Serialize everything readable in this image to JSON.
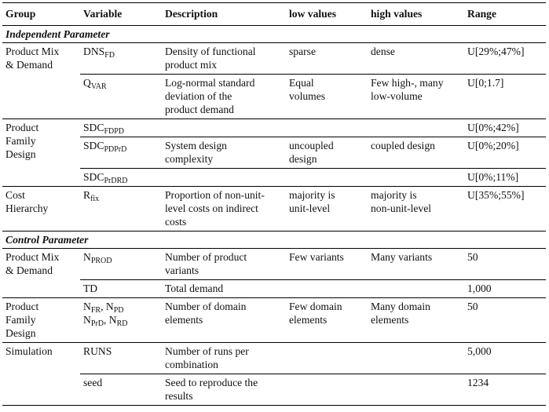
{
  "headers": {
    "group": "Group",
    "variable": "Variable",
    "description": "Description",
    "low": "low values",
    "high": "high values",
    "range": "Range"
  },
  "sections": {
    "independent": "Independent Parameter",
    "control": "Control Parameter"
  },
  "groups": {
    "pmd1": [
      "Product Mix",
      "& Demand"
    ],
    "pfd1": [
      "Product",
      "Family",
      "Design"
    ],
    "cost": [
      "Cost",
      "Hierarchy"
    ],
    "pmd2": [
      "Product Mix",
      "& Demand"
    ],
    "pfd2": [
      "Product",
      "Family",
      "Design"
    ],
    "sim": [
      "Simulation"
    ]
  },
  "rows": {
    "dns": {
      "var": "DNS",
      "sub": "FD",
      "desc": [
        "Density of functional",
        "product mix"
      ],
      "low": [
        "sparse"
      ],
      "high": [
        "dense"
      ],
      "range": "U[29%;47%]"
    },
    "qvar": {
      "var": "Q",
      "sub": "VAR",
      "desc": [
        "Log-normal standard",
        "deviation of the",
        "product demand"
      ],
      "low": [
        "Equal",
        "volumes"
      ],
      "high": [
        "Few high-, many",
        "low-volume"
      ],
      "range": "U[0;1.7]"
    },
    "sdc_fdpd": {
      "var": "SDC",
      "sub": "FDPD",
      "range": "U[0%;42%]"
    },
    "sdc_pdprd": {
      "var": "SDC",
      "sub": "PDPrD",
      "desc": [
        "System design",
        "complexity"
      ],
      "low": [
        "uncoupled",
        "design"
      ],
      "high": [
        "coupled design"
      ],
      "range": "U[0%;20%]"
    },
    "sdc_prdrd": {
      "var": "SDC",
      "sub": "PrDRD",
      "range": "U[0%;11%]"
    },
    "rfix": {
      "var": "R",
      "sub": "fix",
      "desc": [
        "Proportion of non-unit-",
        "level costs on indirect",
        "costs"
      ],
      "low": [
        "majority is",
        "unit-level"
      ],
      "high": [
        "majority is",
        "non-unit-level"
      ],
      "range": "U[35%;55%]"
    },
    "nprod": {
      "var": "N",
      "sub": "PROD",
      "desc": [
        "Number of product",
        "variants"
      ],
      "low": [
        "Few variants"
      ],
      "high": [
        "Many variants"
      ],
      "range": "50"
    },
    "td": {
      "var": "TD",
      "desc": [
        "Total demand"
      ],
      "range": "1,000"
    },
    "ndom": {
      "line1": [
        {
          "var": "N",
          "sub": "FR"
        },
        {
          "var": "N",
          "sub": "PD"
        }
      ],
      "line2": [
        {
          "var": "N",
          "sub": "PrD"
        },
        {
          "var": "N",
          "sub": "RD"
        }
      ],
      "desc": [
        "Number of domain",
        "elements"
      ],
      "low": [
        "Few domain",
        "elements"
      ],
      "high": [
        "Many domain",
        "elements"
      ],
      "range": "50"
    },
    "runs": {
      "var": "RUNS",
      "desc": [
        "Number of runs per",
        "combination"
      ],
      "range": "5,000"
    },
    "seed": {
      "var": "seed",
      "desc": [
        "Seed to reproduce the",
        "results"
      ],
      "range": "1234"
    }
  }
}
